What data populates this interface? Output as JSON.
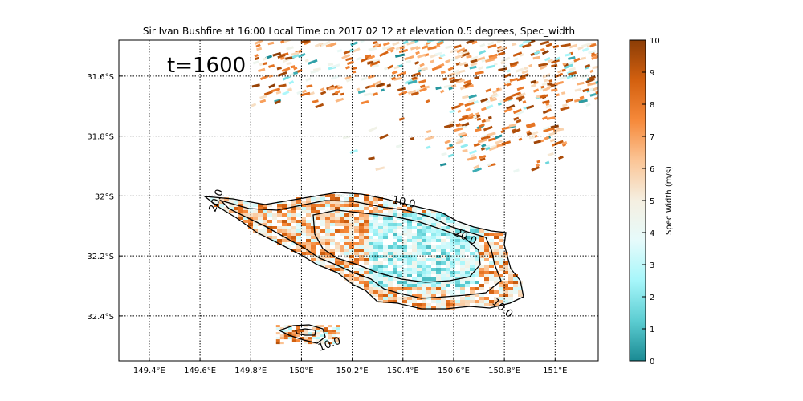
{
  "chart_data": {
    "type": "heatmap",
    "title": "Sir Ivan Bushfire at 16:00 Local Time on 2017 02 12 at elevation 0.5 degrees, Spec_width",
    "annotation": "t=1600",
    "xlabel": "",
    "ylabel": "",
    "x_ticks": [
      149.4,
      149.6,
      149.8,
      150.0,
      150.2,
      150.4,
      150.6,
      150.8,
      151.0
    ],
    "x_tick_labels": [
      "149.4°E",
      "149.6°E",
      "149.8°E",
      "150°E",
      "150.2°E",
      "150.4°E",
      "150.6°E",
      "150.8°E",
      "151°E"
    ],
    "y_ticks": [
      -31.6,
      -31.8,
      -32.0,
      -32.2,
      -32.4
    ],
    "y_tick_labels": [
      "31.6°S",
      "31.8°S",
      "32°S",
      "32.2°S",
      "32.4°S"
    ],
    "xlim": [
      149.28,
      151.17
    ],
    "ylim": [
      -32.55,
      -31.48
    ],
    "grid": true,
    "colorbar": {
      "label": "Spec Width (m/s)",
      "range": [
        0,
        10
      ],
      "ticks": [
        "0",
        "1",
        "2",
        "3",
        "4",
        "5",
        "6",
        "7",
        "8",
        "9",
        "10"
      ],
      "colors": [
        "#1a8a93",
        "#5ccdd2",
        "#a6f6fa",
        "#e6fbfb",
        "#f5efe1",
        "#fbc596",
        "#f6893a",
        "#d3600f",
        "#8b3d06"
      ]
    },
    "contour_labels": [
      "20.0",
      "10.0",
      "20.0",
      "10.0",
      "10.0"
    ],
    "regions": [
      {
        "name": "scattered returns north",
        "lon_range": [
          149.8,
          151.17
        ],
        "lat_range": [
          -31.92,
          -31.48
        ],
        "dominant_value": 7
      },
      {
        "name": "main fire plume",
        "lon_range": [
          149.62,
          150.95
        ],
        "lat_range": [
          -32.38,
          -31.98
        ],
        "dominant_value": 6
      },
      {
        "name": "plume core",
        "lon_range": [
          150.25,
          150.7
        ],
        "lat_range": [
          -32.3,
          -32.05
        ],
        "dominant_value": 2.5
      },
      {
        "name": "southern cell",
        "lon_range": [
          149.9,
          150.15
        ],
        "lat_range": [
          -32.49,
          -32.43
        ],
        "dominant_value": 6
      }
    ]
  }
}
